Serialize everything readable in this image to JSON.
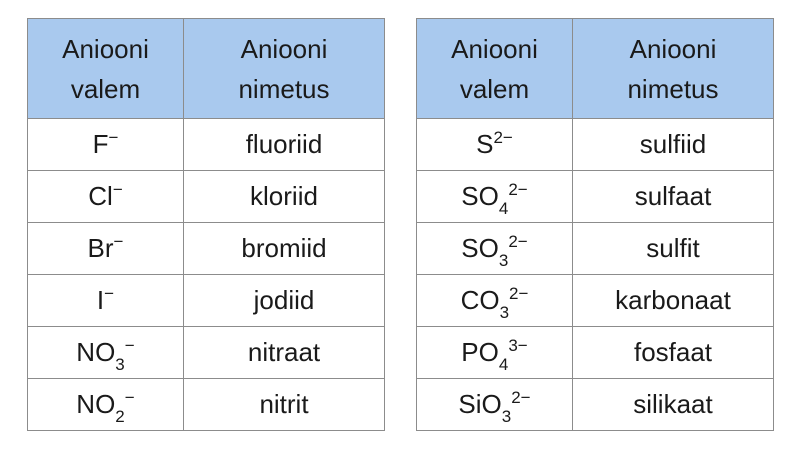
{
  "tables": [
    {
      "header": [
        [
          "Aniooni",
          "valem"
        ],
        [
          "Aniooni",
          "nimetus"
        ]
      ],
      "rows": [
        {
          "formula": {
            "base": "F",
            "sup": "−"
          },
          "name": "fluoriid"
        },
        {
          "formula": {
            "base": "Cl",
            "sup": "−"
          },
          "name": "kloriid"
        },
        {
          "formula": {
            "base": "Br",
            "sup": "−"
          },
          "name": "bromiid"
        },
        {
          "formula": {
            "base": "I",
            "sup": "−"
          },
          "name": "jodiid"
        },
        {
          "formula": {
            "base": "NO",
            "sub": "3",
            "sup": "−"
          },
          "name": "nitraat"
        },
        {
          "formula": {
            "base": "NO",
            "sub": "2",
            "sup": "−"
          },
          "name": "nitrit"
        }
      ]
    },
    {
      "header": [
        [
          "Aniooni",
          "valem"
        ],
        [
          "Aniooni",
          "nimetus"
        ]
      ],
      "rows": [
        {
          "formula": {
            "base": "S",
            "sup": "2−"
          },
          "name": "sulfiid"
        },
        {
          "formula": {
            "base": "SO",
            "sub": "4",
            "sup": "2−"
          },
          "name": "sulfaat"
        },
        {
          "formula": {
            "base": "SO",
            "sub": "3",
            "sup": "2−"
          },
          "name": "sulfit"
        },
        {
          "formula": {
            "base": "CO",
            "sub": "3",
            "sup": "2−"
          },
          "name": "karbonaat"
        },
        {
          "formula": {
            "base": "PO",
            "sub": "4",
            "sup": "3−"
          },
          "name": "fosfaat"
        },
        {
          "formula": {
            "base": "SiO",
            "sub": "3",
            "sup": "2−"
          },
          "name": "silikaat"
        }
      ]
    }
  ]
}
